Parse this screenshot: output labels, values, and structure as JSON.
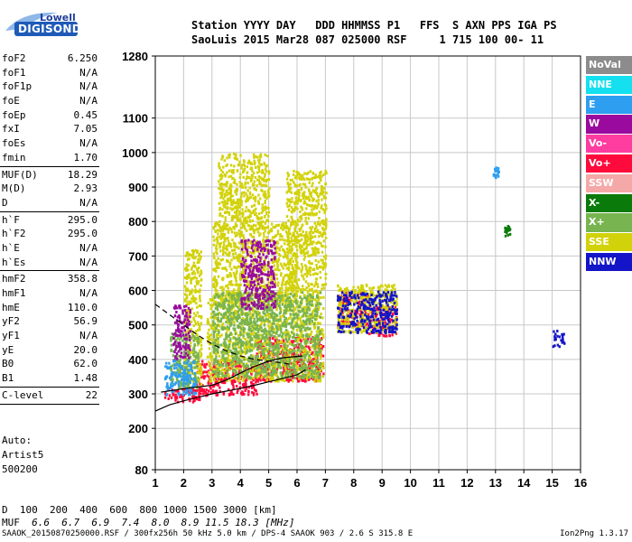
{
  "logo": {
    "line1": "Lowell",
    "line2": "DIGISONDE"
  },
  "header": {
    "line1": "Station YYYY DAY   DDD HHMMSS P1   FFS  S AXN PPS IGA PS",
    "line2": "SaoLuis 2015 Mar28 087 025000 RSF     1 715 100 00- 11"
  },
  "params": {
    "group1": [
      {
        "name": "foF2",
        "value": "6.250"
      },
      {
        "name": "foF1",
        "value": "N/A"
      },
      {
        "name": "foF1p",
        "value": "N/A"
      },
      {
        "name": "foE",
        "value": "N/A"
      },
      {
        "name": "foEp",
        "value": "0.45"
      },
      {
        "name": "fxI",
        "value": "7.05"
      },
      {
        "name": "foEs",
        "value": "N/A"
      },
      {
        "name": "fmin",
        "value": "1.70"
      }
    ],
    "group2": [
      {
        "name": "MUF(D)",
        "value": "18.29"
      },
      {
        "name": "M(D)",
        "value": "2.93"
      },
      {
        "name": "D",
        "value": "N/A"
      }
    ],
    "group3": [
      {
        "name": "h`F",
        "value": "295.0"
      },
      {
        "name": "h`F2",
        "value": "295.0"
      },
      {
        "name": "h`E",
        "value": "N/A"
      },
      {
        "name": "h`Es",
        "value": "N/A"
      }
    ],
    "group4": [
      {
        "name": "hmF2",
        "value": "358.8"
      },
      {
        "name": "hmF1",
        "value": "N/A"
      },
      {
        "name": "hmE",
        "value": "110.0"
      },
      {
        "name": "yF2",
        "value": "56.9"
      },
      {
        "name": "yF1",
        "value": "N/A"
      },
      {
        "name": "yE",
        "value": "20.0"
      },
      {
        "name": "B0",
        "value": "62.0"
      },
      {
        "name": "B1",
        "value": "1.48"
      }
    ],
    "group5": [
      {
        "name": "C-level",
        "value": "22"
      }
    ]
  },
  "auto": {
    "line1": "Auto:",
    "line2": "Artist5",
    "line3": "500200"
  },
  "legend": [
    {
      "label": "NoVal",
      "color": "#8c8c8c"
    },
    {
      "label": "NNE",
      "color": "#14e0f0"
    },
    {
      "label": "E",
      "color": "#2e9ef0"
    },
    {
      "label": "W",
      "color": "#9a0a9e"
    },
    {
      "label": "Vo-",
      "color": "#ff3ca0"
    },
    {
      "label": "Vo+",
      "color": "#ff0a3c"
    },
    {
      "label": "SSW",
      "color": "#f5a8a8"
    },
    {
      "label": "X-",
      "color": "#0a7a0a"
    },
    {
      "label": "X+",
      "color": "#78b450"
    },
    {
      "label": "SSE",
      "color": "#d2d20a"
    },
    {
      "label": "NNW",
      "color": "#1414c8"
    }
  ],
  "chart_data": {
    "type": "scatter",
    "title": "",
    "xlabel": "",
    "ylabel": "",
    "xlim": [
      1,
      16
    ],
    "ylim": [
      80,
      1280
    ],
    "x_ticks": [
      1,
      2,
      3,
      4,
      5,
      6,
      7,
      8,
      9,
      10,
      11,
      12,
      13,
      14,
      15,
      16
    ],
    "y_ticks": [
      80,
      200,
      300,
      400,
      500,
      600,
      700,
      800,
      900,
      1000,
      1100,
      1280
    ],
    "grid": true,
    "series": [
      {
        "name": "Vo+",
        "color": "#ff0a3c",
        "regions": [
          {
            "x": [
              1.3,
              2.8
            ],
            "y": [
              280,
              320
            ]
          },
          {
            "x": [
              2.4,
              4.6
            ],
            "y": [
              300,
              400
            ]
          },
          {
            "x": [
              4.5,
              6.9
            ],
            "y": [
              340,
              470
            ]
          },
          {
            "x": [
              7.4,
              8.5
            ],
            "y": [
              500,
              600
            ]
          },
          {
            "x": [
              8.5,
              9.5
            ],
            "y": [
              470,
              560
            ]
          }
        ]
      },
      {
        "name": "SSE",
        "color": "#d2d20a",
        "regions": [
          {
            "x": [
              2.0,
              2.6
            ],
            "y": [
              330,
              720
            ]
          },
          {
            "x": [
              2.8,
              6.9
            ],
            "y": [
              340,
              600
            ]
          },
          {
            "x": [
              3.0,
              6.0
            ],
            "y": [
              560,
              800
            ]
          },
          {
            "x": [
              3.2,
              5.0
            ],
            "y": [
              800,
              1000
            ]
          },
          {
            "x": [
              5.6,
              7.0
            ],
            "y": [
              600,
              950
            ]
          },
          {
            "x": [
              7.4,
              9.5
            ],
            "y": [
              480,
              620
            ]
          }
        ]
      },
      {
        "name": "X+",
        "color": "#78b450",
        "regions": [
          {
            "x": [
              1.5,
              2.5
            ],
            "y": [
              320,
              480
            ]
          },
          {
            "x": [
              3.0,
              6.8
            ],
            "y": [
              350,
              600
            ]
          }
        ]
      },
      {
        "name": "W",
        "color": "#9a0a9e",
        "regions": [
          {
            "x": [
              4.0,
              5.2
            ],
            "y": [
              550,
              750
            ]
          },
          {
            "x": [
              1.6,
              2.2
            ],
            "y": [
              400,
              560
            ]
          }
        ]
      },
      {
        "name": "NNW",
        "color": "#1414c8",
        "regions": [
          {
            "x": [
              7.4,
              9.5
            ],
            "y": [
              480,
              600
            ]
          },
          {
            "x": [
              15.0,
              15.4
            ],
            "y": [
              440,
              490
            ]
          }
        ]
      },
      {
        "name": "E",
        "color": "#2e9ef0",
        "regions": [
          {
            "x": [
              1.3,
              2.4
            ],
            "y": [
              300,
              400
            ]
          },
          {
            "x": [
              12.9,
              13.1
            ],
            "y": [
              930,
              960
            ]
          }
        ]
      },
      {
        "name": "X-",
        "color": "#0a7a0a",
        "regions": [
          {
            "x": [
              13.3,
              13.5
            ],
            "y": [
              760,
              790
            ]
          }
        ]
      }
    ],
    "profile_curve": [
      [
        1.0,
        250
      ],
      [
        1.5,
        268
      ],
      [
        2.0,
        280
      ],
      [
        2.5,
        290
      ],
      [
        3.0,
        300
      ],
      [
        3.5,
        308
      ],
      [
        4.0,
        316
      ],
      [
        4.5,
        325
      ],
      [
        5.0,
        335
      ],
      [
        5.5,
        345
      ],
      [
        6.0,
        355
      ],
      [
        6.3,
        370
      ]
    ],
    "profile_dashed": [
      [
        1.0,
        560
      ],
      [
        1.5,
        530
      ],
      [
        2.0,
        500
      ],
      [
        2.5,
        470
      ],
      [
        3.0,
        445
      ],
      [
        3.5,
        425
      ],
      [
        4.0,
        410
      ],
      [
        4.5,
        400
      ],
      [
        5.0,
        395
      ],
      [
        5.5,
        390
      ],
      [
        5.8,
        385
      ]
    ],
    "profile_solid2": [
      [
        1.2,
        305
      ],
      [
        2.0,
        315
      ],
      [
        2.5,
        320
      ],
      [
        3.0,
        325
      ],
      [
        3.5,
        340
      ],
      [
        4.0,
        360
      ],
      [
        4.5,
        380
      ],
      [
        5.0,
        395
      ],
      [
        5.5,
        405
      ],
      [
        6.2,
        410
      ]
    ]
  },
  "dtable": {
    "d_label": "D",
    "d_values": "  100  200  400  600  800 1000 1500 3000 [km]",
    "muf_label": "MUF",
    "muf_values": "  6.6  6.7  6.9  7.4  8.0  8.9 11.5 18.3 [MHz]"
  },
  "footer": "SAAOK_20150870250000.RSF / 300fx256h 50 kHz 5.0 km / DPS-4 SAAOK 903 / 2.6 S 315.8 E",
  "version": "Ion2Png 1.3.17"
}
